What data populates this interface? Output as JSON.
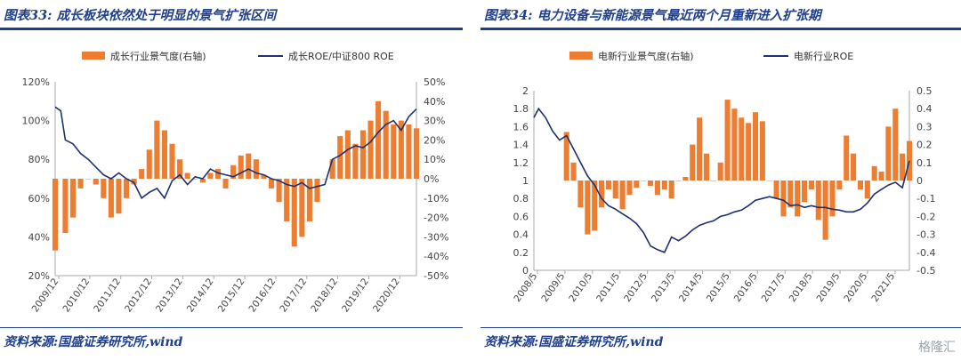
{
  "watermark": "格隆汇",
  "chart_data": [
    {
      "type": "bar+line",
      "title": "图表33:  成长板块依然处于明显的景气扩张区间",
      "source": "资料来源:国盛证券研究所,wind",
      "legend": {
        "placement": "top",
        "entries": [
          "成长行业景气度(右轴)",
          "成长ROE/中证800 ROE"
        ]
      },
      "left_axis": {
        "range": [
          0.2,
          1.2
        ],
        "ticks": [
          "120%",
          "100%",
          "80%",
          "60%",
          "40%",
          "20%"
        ],
        "values": [
          1.2,
          1.0,
          0.8,
          0.6,
          0.4,
          0.2
        ]
      },
      "right_axis": {
        "range": [
          -0.5,
          0.5
        ],
        "ticks": [
          "50%",
          "40%",
          "30%",
          "20%",
          "10%",
          "0%",
          "-10%",
          "-20%",
          "-30%",
          "-40%",
          "-50%"
        ],
        "values": [
          0.5,
          0.4,
          0.3,
          0.2,
          0.1,
          0.0,
          -0.1,
          -0.2,
          -0.3,
          -0.4,
          -0.5
        ]
      },
      "x_labels": [
        "2009/12",
        "2010/12",
        "2011/12",
        "2012/12",
        "2013/12",
        "2014/12",
        "2015/12",
        "2016/12",
        "2017/12",
        "2018/12",
        "2019/12",
        "2020/12"
      ],
      "x_start": 2009.917,
      "x_end": 2021.75,
      "bar_series": {
        "name": "成长行业景气度(右轴)",
        "color": "#ed7d31",
        "axis": "right",
        "points": [
          [
            2009.917,
            -0.37
          ],
          [
            2010.25,
            -0.28
          ],
          [
            2010.5,
            -0.2
          ],
          [
            2010.75,
            -0.05
          ],
          [
            2011.0,
            0.0
          ],
          [
            2011.25,
            -0.03
          ],
          [
            2011.5,
            -0.1
          ],
          [
            2011.75,
            -0.2
          ],
          [
            2012.0,
            -0.18
          ],
          [
            2012.25,
            -0.1
          ],
          [
            2012.5,
            -0.03
          ],
          [
            2012.75,
            0.05
          ],
          [
            2013.0,
            0.15
          ],
          [
            2013.25,
            0.3
          ],
          [
            2013.5,
            0.25
          ],
          [
            2013.75,
            0.18
          ],
          [
            2014.0,
            0.1
          ],
          [
            2014.25,
            0.03
          ],
          [
            2014.5,
            0.0
          ],
          [
            2014.75,
            -0.02
          ],
          [
            2015.0,
            0.03
          ],
          [
            2015.25,
            0.05
          ],
          [
            2015.5,
            -0.05
          ],
          [
            2015.75,
            0.07
          ],
          [
            2016.0,
            0.12
          ],
          [
            2016.25,
            0.13
          ],
          [
            2016.5,
            0.1
          ],
          [
            2016.75,
            0.02
          ],
          [
            2017.0,
            -0.05
          ],
          [
            2017.25,
            -0.12
          ],
          [
            2017.5,
            -0.22
          ],
          [
            2017.75,
            -0.35
          ],
          [
            2018.0,
            -0.3
          ],
          [
            2018.25,
            -0.22
          ],
          [
            2018.5,
            -0.12
          ],
          [
            2018.75,
            0.0
          ],
          [
            2019.0,
            0.1
          ],
          [
            2019.25,
            0.22
          ],
          [
            2019.5,
            0.25
          ],
          [
            2019.75,
            0.18
          ],
          [
            2020.0,
            0.25
          ],
          [
            2020.25,
            0.3
          ],
          [
            2020.5,
            0.4
          ],
          [
            2020.75,
            0.35
          ],
          [
            2021.0,
            0.28
          ],
          [
            2021.25,
            0.3
          ],
          [
            2021.5,
            0.28
          ],
          [
            2021.75,
            0.26
          ]
        ]
      },
      "line_series": {
        "name": "成长ROE/中证800 ROE",
        "color": "#1f3070",
        "axis": "left",
        "points": [
          [
            2009.917,
            1.07
          ],
          [
            2010.1,
            1.05
          ],
          [
            2010.25,
            0.9
          ],
          [
            2010.5,
            0.88
          ],
          [
            2010.75,
            0.83
          ],
          [
            2011.0,
            0.8
          ],
          [
            2011.25,
            0.76
          ],
          [
            2011.5,
            0.72
          ],
          [
            2011.75,
            0.7
          ],
          [
            2012.0,
            0.73
          ],
          [
            2012.25,
            0.7
          ],
          [
            2012.5,
            0.68
          ],
          [
            2012.75,
            0.6
          ],
          [
            2013.0,
            0.63
          ],
          [
            2013.25,
            0.65
          ],
          [
            2013.5,
            0.6
          ],
          [
            2013.75,
            0.69
          ],
          [
            2014.0,
            0.72
          ],
          [
            2014.25,
            0.67
          ],
          [
            2014.5,
            0.71
          ],
          [
            2014.75,
            0.7
          ],
          [
            2015.0,
            0.75
          ],
          [
            2015.25,
            0.73
          ],
          [
            2015.5,
            0.72
          ],
          [
            2015.75,
            0.71
          ],
          [
            2016.0,
            0.73
          ],
          [
            2016.25,
            0.75
          ],
          [
            2016.5,
            0.73
          ],
          [
            2016.75,
            0.72
          ],
          [
            2017.0,
            0.7
          ],
          [
            2017.25,
            0.69
          ],
          [
            2017.5,
            0.67
          ],
          [
            2017.75,
            0.66
          ],
          [
            2018.0,
            0.68
          ],
          [
            2018.25,
            0.65
          ],
          [
            2018.5,
            0.66
          ],
          [
            2018.75,
            0.67
          ],
          [
            2019.0,
            0.8
          ],
          [
            2019.25,
            0.82
          ],
          [
            2019.5,
            0.85
          ],
          [
            2019.75,
            0.87
          ],
          [
            2020.0,
            0.86
          ],
          [
            2020.25,
            0.89
          ],
          [
            2020.5,
            0.94
          ],
          [
            2020.75,
            0.98
          ],
          [
            2021.0,
            1.0
          ],
          [
            2021.25,
            0.95
          ],
          [
            2021.5,
            1.02
          ],
          [
            2021.75,
            1.06
          ]
        ]
      }
    },
    {
      "type": "bar+line",
      "title": "图表34:  电力设备与新能源景气最近两个月重新进入扩张期",
      "source": "资料来源:国盛证券研究所,wind",
      "legend": {
        "placement": "top",
        "entries": [
          "电新行业景气度(右轴)",
          "电新行业ROE"
        ]
      },
      "left_axis": {
        "range": [
          0,
          2
        ],
        "ticks": [
          "2",
          "1.8",
          "1.6",
          "1.4",
          "1.2",
          "1",
          "0.8",
          "0.6",
          "0.4",
          "0.2",
          "0"
        ],
        "values": [
          2,
          1.8,
          1.6,
          1.4,
          1.2,
          1,
          0.8,
          0.6,
          0.4,
          0.2,
          0
        ]
      },
      "right_axis": {
        "range": [
          -0.5,
          0.5
        ],
        "ticks": [
          "0.5",
          "0.4",
          "0.3",
          "0.2",
          "0.1",
          "0",
          "-0.1",
          "-0.2",
          "-0.3",
          "-0.4",
          "-0.5"
        ],
        "values": [
          0.5,
          0.4,
          0.3,
          0.2,
          0.1,
          0.0,
          -0.1,
          -0.2,
          -0.3,
          -0.4,
          -0.5
        ]
      },
      "x_labels": [
        "2008/5",
        "2009/5",
        "2010/5",
        "2011/5",
        "2012/5",
        "2013/5",
        "2014/5",
        "2015/5",
        "2016/5",
        "2017/5",
        "2018/5",
        "2019/5",
        "2020/5",
        "2021/5"
      ],
      "x_start": 2008.333,
      "x_end": 2021.75,
      "bar_series": {
        "name": "电新行业景气度(右轴)",
        "color": "#ed7d31",
        "axis": "right",
        "points": [
          [
            2009.5,
            0.27
          ],
          [
            2009.75,
            0.1
          ],
          [
            2010.0,
            -0.15
          ],
          [
            2010.25,
            -0.3
          ],
          [
            2010.5,
            -0.28
          ],
          [
            2010.75,
            -0.15
          ],
          [
            2011.0,
            -0.05
          ],
          [
            2011.25,
            -0.1
          ],
          [
            2011.5,
            -0.16
          ],
          [
            2011.75,
            -0.08
          ],
          [
            2012.0,
            -0.04
          ],
          [
            2012.25,
            0.0
          ],
          [
            2012.5,
            -0.03
          ],
          [
            2012.75,
            -0.08
          ],
          [
            2013.0,
            -0.05
          ],
          [
            2013.25,
            -0.1
          ],
          [
            2013.5,
            0.0
          ],
          [
            2013.75,
            0.02
          ],
          [
            2014.0,
            0.2
          ],
          [
            2014.25,
            0.35
          ],
          [
            2014.5,
            0.15
          ],
          [
            2014.75,
            0.0
          ],
          [
            2015.0,
            0.1
          ],
          [
            2015.25,
            0.45
          ],
          [
            2015.5,
            0.4
          ],
          [
            2015.75,
            0.35
          ],
          [
            2016.0,
            0.32
          ],
          [
            2016.25,
            0.38
          ],
          [
            2016.5,
            0.33
          ],
          [
            2016.75,
            0.0
          ],
          [
            2017.0,
            -0.1
          ],
          [
            2017.25,
            -0.2
          ],
          [
            2017.5,
            -0.15
          ],
          [
            2017.75,
            -0.2
          ],
          [
            2018.0,
            -0.12
          ],
          [
            2018.25,
            -0.05
          ],
          [
            2018.5,
            -0.22
          ],
          [
            2018.75,
            -0.33
          ],
          [
            2019.0,
            -0.2
          ],
          [
            2019.25,
            -0.05
          ],
          [
            2019.5,
            0.25
          ],
          [
            2019.75,
            0.15
          ],
          [
            2020.0,
            -0.05
          ],
          [
            2020.25,
            -0.1
          ],
          [
            2020.5,
            0.08
          ],
          [
            2020.75,
            0.05
          ],
          [
            2021.0,
            0.3
          ],
          [
            2021.25,
            0.4
          ],
          [
            2021.5,
            0.15
          ],
          [
            2021.75,
            0.22
          ]
        ]
      },
      "line_series": {
        "name": "电新行业ROE",
        "color": "#1f3070",
        "axis": "left",
        "points": [
          [
            2008.333,
            1.7
          ],
          [
            2008.5,
            1.8
          ],
          [
            2008.75,
            1.7
          ],
          [
            2009.0,
            1.55
          ],
          [
            2009.25,
            1.45
          ],
          [
            2009.5,
            1.5
          ],
          [
            2009.75,
            1.35
          ],
          [
            2010.0,
            1.2
          ],
          [
            2010.25,
            1.05
          ],
          [
            2010.5,
            0.95
          ],
          [
            2010.75,
            0.8
          ],
          [
            2011.0,
            0.72
          ],
          [
            2011.25,
            0.68
          ],
          [
            2011.5,
            0.63
          ],
          [
            2011.75,
            0.58
          ],
          [
            2012.0,
            0.52
          ],
          [
            2012.25,
            0.42
          ],
          [
            2012.5,
            0.27
          ],
          [
            2012.75,
            0.23
          ],
          [
            2013.0,
            0.2
          ],
          [
            2013.25,
            0.37
          ],
          [
            2013.5,
            0.33
          ],
          [
            2013.75,
            0.38
          ],
          [
            2014.0,
            0.45
          ],
          [
            2014.25,
            0.5
          ],
          [
            2014.5,
            0.53
          ],
          [
            2014.75,
            0.55
          ],
          [
            2015.0,
            0.6
          ],
          [
            2015.25,
            0.62
          ],
          [
            2015.5,
            0.65
          ],
          [
            2015.75,
            0.67
          ],
          [
            2016.0,
            0.72
          ],
          [
            2016.25,
            0.78
          ],
          [
            2016.5,
            0.8
          ],
          [
            2016.75,
            0.82
          ],
          [
            2017.0,
            0.8
          ],
          [
            2017.25,
            0.78
          ],
          [
            2017.5,
            0.72
          ],
          [
            2017.75,
            0.73
          ],
          [
            2018.0,
            0.7
          ],
          [
            2018.25,
            0.72
          ],
          [
            2018.5,
            0.7
          ],
          [
            2018.75,
            0.7
          ],
          [
            2019.0,
            0.68
          ],
          [
            2019.25,
            0.67
          ],
          [
            2019.5,
            0.65
          ],
          [
            2019.75,
            0.65
          ],
          [
            2020.0,
            0.68
          ],
          [
            2020.25,
            0.75
          ],
          [
            2020.5,
            0.85
          ],
          [
            2020.75,
            0.9
          ],
          [
            2021.0,
            0.95
          ],
          [
            2021.25,
            0.98
          ],
          [
            2021.5,
            0.92
          ],
          [
            2021.75,
            1.22
          ]
        ]
      }
    }
  ]
}
